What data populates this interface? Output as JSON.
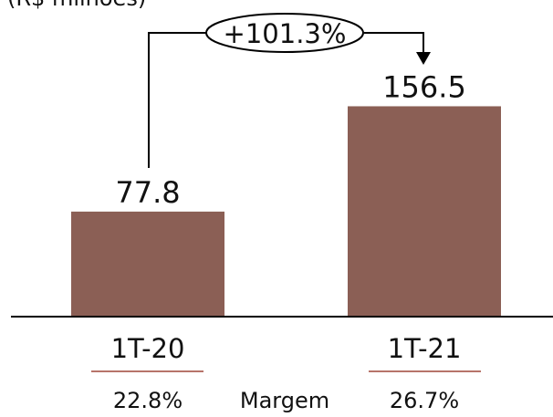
{
  "chart_data": {
    "type": "bar",
    "unit_caption": "(R$ milhões)",
    "categories": [
      "1T-20",
      "1T-21"
    ],
    "values": [
      77.8,
      156.5
    ],
    "value_labels": [
      "77.8",
      "156.5"
    ],
    "margins": [
      "22.8%",
      "26.7%"
    ],
    "margin_label": "Margem",
    "growth_label": "+101.3%",
    "ylim": [
      0,
      165
    ],
    "bar_color": "#8b5f55",
    "margin_rule_color": "#b7746a",
    "grid": false
  }
}
